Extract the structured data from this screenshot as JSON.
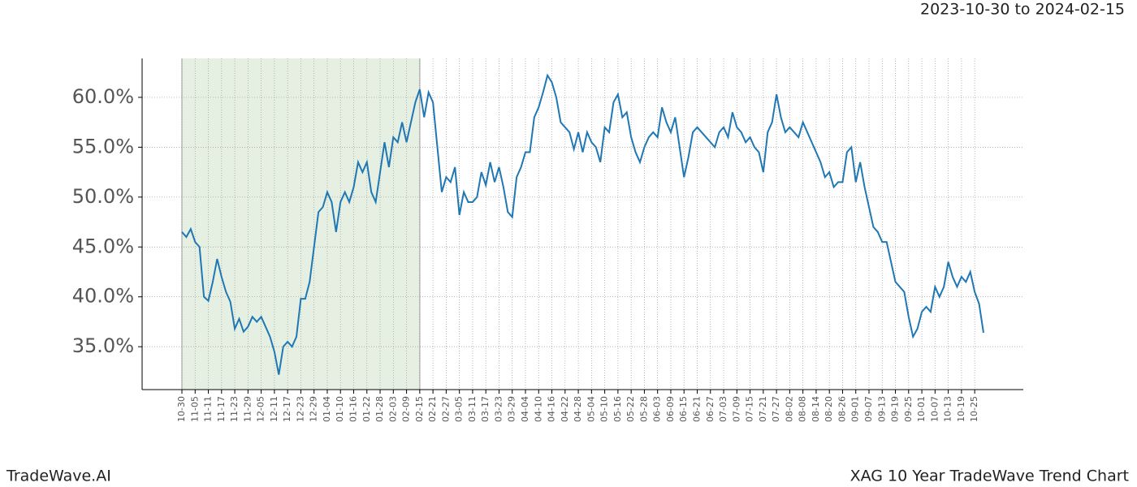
{
  "header": {
    "range": "2023-10-30 to 2024-02-15"
  },
  "footer": {
    "brand": "TradeWave.AI",
    "chart_name": "XAG 10 Year TradeWave Trend Chart"
  },
  "chart_data": {
    "type": "line",
    "categories": [
      "10-30",
      null,
      null,
      "11-05",
      null,
      null,
      "11-11",
      null,
      null,
      "11-17",
      null,
      null,
      "11-23",
      null,
      null,
      "11-29",
      null,
      null,
      "12-05",
      null,
      null,
      "12-11",
      null,
      null,
      "12-17",
      null,
      null,
      "12-23",
      null,
      null,
      "12-29",
      null,
      null,
      "01-04",
      null,
      null,
      "01-10",
      null,
      null,
      "01-16",
      null,
      null,
      "01-22",
      null,
      null,
      "01-28",
      null,
      null,
      "02-03",
      null,
      null,
      "02-09",
      null,
      null,
      "02-15",
      null,
      null,
      "02-21",
      null,
      null,
      "02-27",
      null,
      null,
      "03-05",
      null,
      null,
      "03-11",
      null,
      null,
      "03-17",
      null,
      null,
      "03-23",
      null,
      null,
      "03-29",
      null,
      null,
      "04-04",
      null,
      null,
      "04-10",
      null,
      null,
      "04-16",
      null,
      null,
      "04-22",
      null,
      null,
      "04-28",
      null,
      null,
      "05-04",
      null,
      null,
      "05-10",
      null,
      null,
      "05-16",
      null,
      null,
      "05-22",
      null,
      null,
      "05-28",
      null,
      null,
      "06-03",
      null,
      null,
      "06-09",
      null,
      null,
      "06-15",
      null,
      null,
      "06-21",
      null,
      null,
      "06-27",
      null,
      null,
      "07-03",
      null,
      null,
      "07-09",
      null,
      null,
      "07-15",
      null,
      null,
      "07-21",
      null,
      null,
      "07-27",
      null,
      null,
      "08-02",
      null,
      null,
      "08-08",
      null,
      null,
      "08-14",
      null,
      null,
      "08-20",
      null,
      null,
      "08-26",
      null,
      null,
      "09-01",
      null,
      null,
      "09-07",
      null,
      null,
      "09-13",
      null,
      null,
      "09-19",
      null,
      null,
      "09-25",
      null,
      null,
      "10-01",
      null,
      null,
      "10-07",
      null,
      null,
      "10-13",
      null,
      null,
      "10-19",
      null,
      null,
      "10-25",
      null,
      null
    ],
    "series": [
      {
        "color": "#1f77b4",
        "values": [
          46.5,
          46.0,
          46.8,
          45.5,
          45.0,
          40.0,
          39.6,
          41.5,
          43.8,
          42.0,
          40.5,
          39.5,
          36.8,
          37.8,
          36.5,
          37.0,
          38.0,
          37.5,
          38.0,
          37.0,
          36.0,
          34.5,
          32.2,
          35.0,
          35.5,
          35.0,
          36.0,
          39.8,
          39.8,
          41.5,
          45.0,
          48.5,
          49.0,
          50.5,
          49.5,
          46.5,
          49.5,
          50.5,
          49.5,
          51.0,
          53.5,
          52.5,
          53.5,
          50.5,
          49.5,
          52.5,
          55.5,
          53.0,
          56.0,
          55.5,
          57.5,
          55.5,
          57.5,
          59.5,
          60.8,
          58.0,
          60.5,
          59.5,
          55.0,
          50.5,
          52.0,
          51.5,
          53.0,
          48.2,
          50.5,
          49.5,
          49.5,
          50.0,
          52.5,
          51.2,
          53.5,
          51.5,
          53.0,
          51.0,
          48.5,
          48.0,
          52.0,
          53.0,
          54.5,
          54.5,
          58.0,
          59.0,
          60.5,
          62.2,
          61.5,
          60.0,
          57.5,
          57.0,
          56.5,
          54.8,
          56.5,
          54.5,
          56.5,
          55.5,
          55.0,
          53.5,
          57.0,
          56.5,
          59.5,
          60.3,
          58.0,
          58.5,
          56.0,
          54.5,
          53.5,
          55.0,
          56.0,
          56.5,
          56.0,
          59.0,
          57.5,
          56.5,
          58.0,
          55.0,
          52.0,
          54.0,
          56.5,
          57.0,
          56.5,
          56.0,
          55.5,
          55.0,
          56.5,
          57.0,
          56.0,
          58.5,
          57.0,
          56.5,
          55.5,
          56.0,
          55.0,
          54.5,
          52.5,
          56.5,
          57.5,
          60.3,
          58.0,
          56.5,
          57.0,
          56.5,
          56.0,
          57.5,
          56.5,
          55.5,
          54.5,
          53.5,
          52.0,
          52.5,
          51.0,
          51.5,
          51.5,
          54.5,
          55.0,
          51.5,
          53.5,
          51.0,
          49.0,
          47.0,
          46.5,
          45.5,
          45.5,
          43.5,
          41.5,
          41.0,
          40.5,
          38.0,
          36.0,
          36.8,
          38.5,
          39.0,
          38.5,
          41.0,
          40.0,
          41.0,
          43.5,
          42.0,
          41.0,
          42.0,
          41.5,
          42.5,
          40.5,
          39.3,
          36.4
        ]
      }
    ],
    "highlight": [
      "10-30",
      "02-15"
    ],
    "highlight_color": "#e5f0e3",
    "ylim": [
      30.7,
      63.9
    ],
    "yticks": [
      {
        "value": 35,
        "label": "35.0%"
      },
      {
        "value": 40,
        "label": "40.0%"
      },
      {
        "value": 45,
        "label": "45.0%"
      },
      {
        "value": 50,
        "label": "50.0%"
      },
      {
        "value": 55,
        "label": "55.0%"
      },
      {
        "value": 60,
        "label": "60.0%"
      }
    ],
    "grid": true
  }
}
